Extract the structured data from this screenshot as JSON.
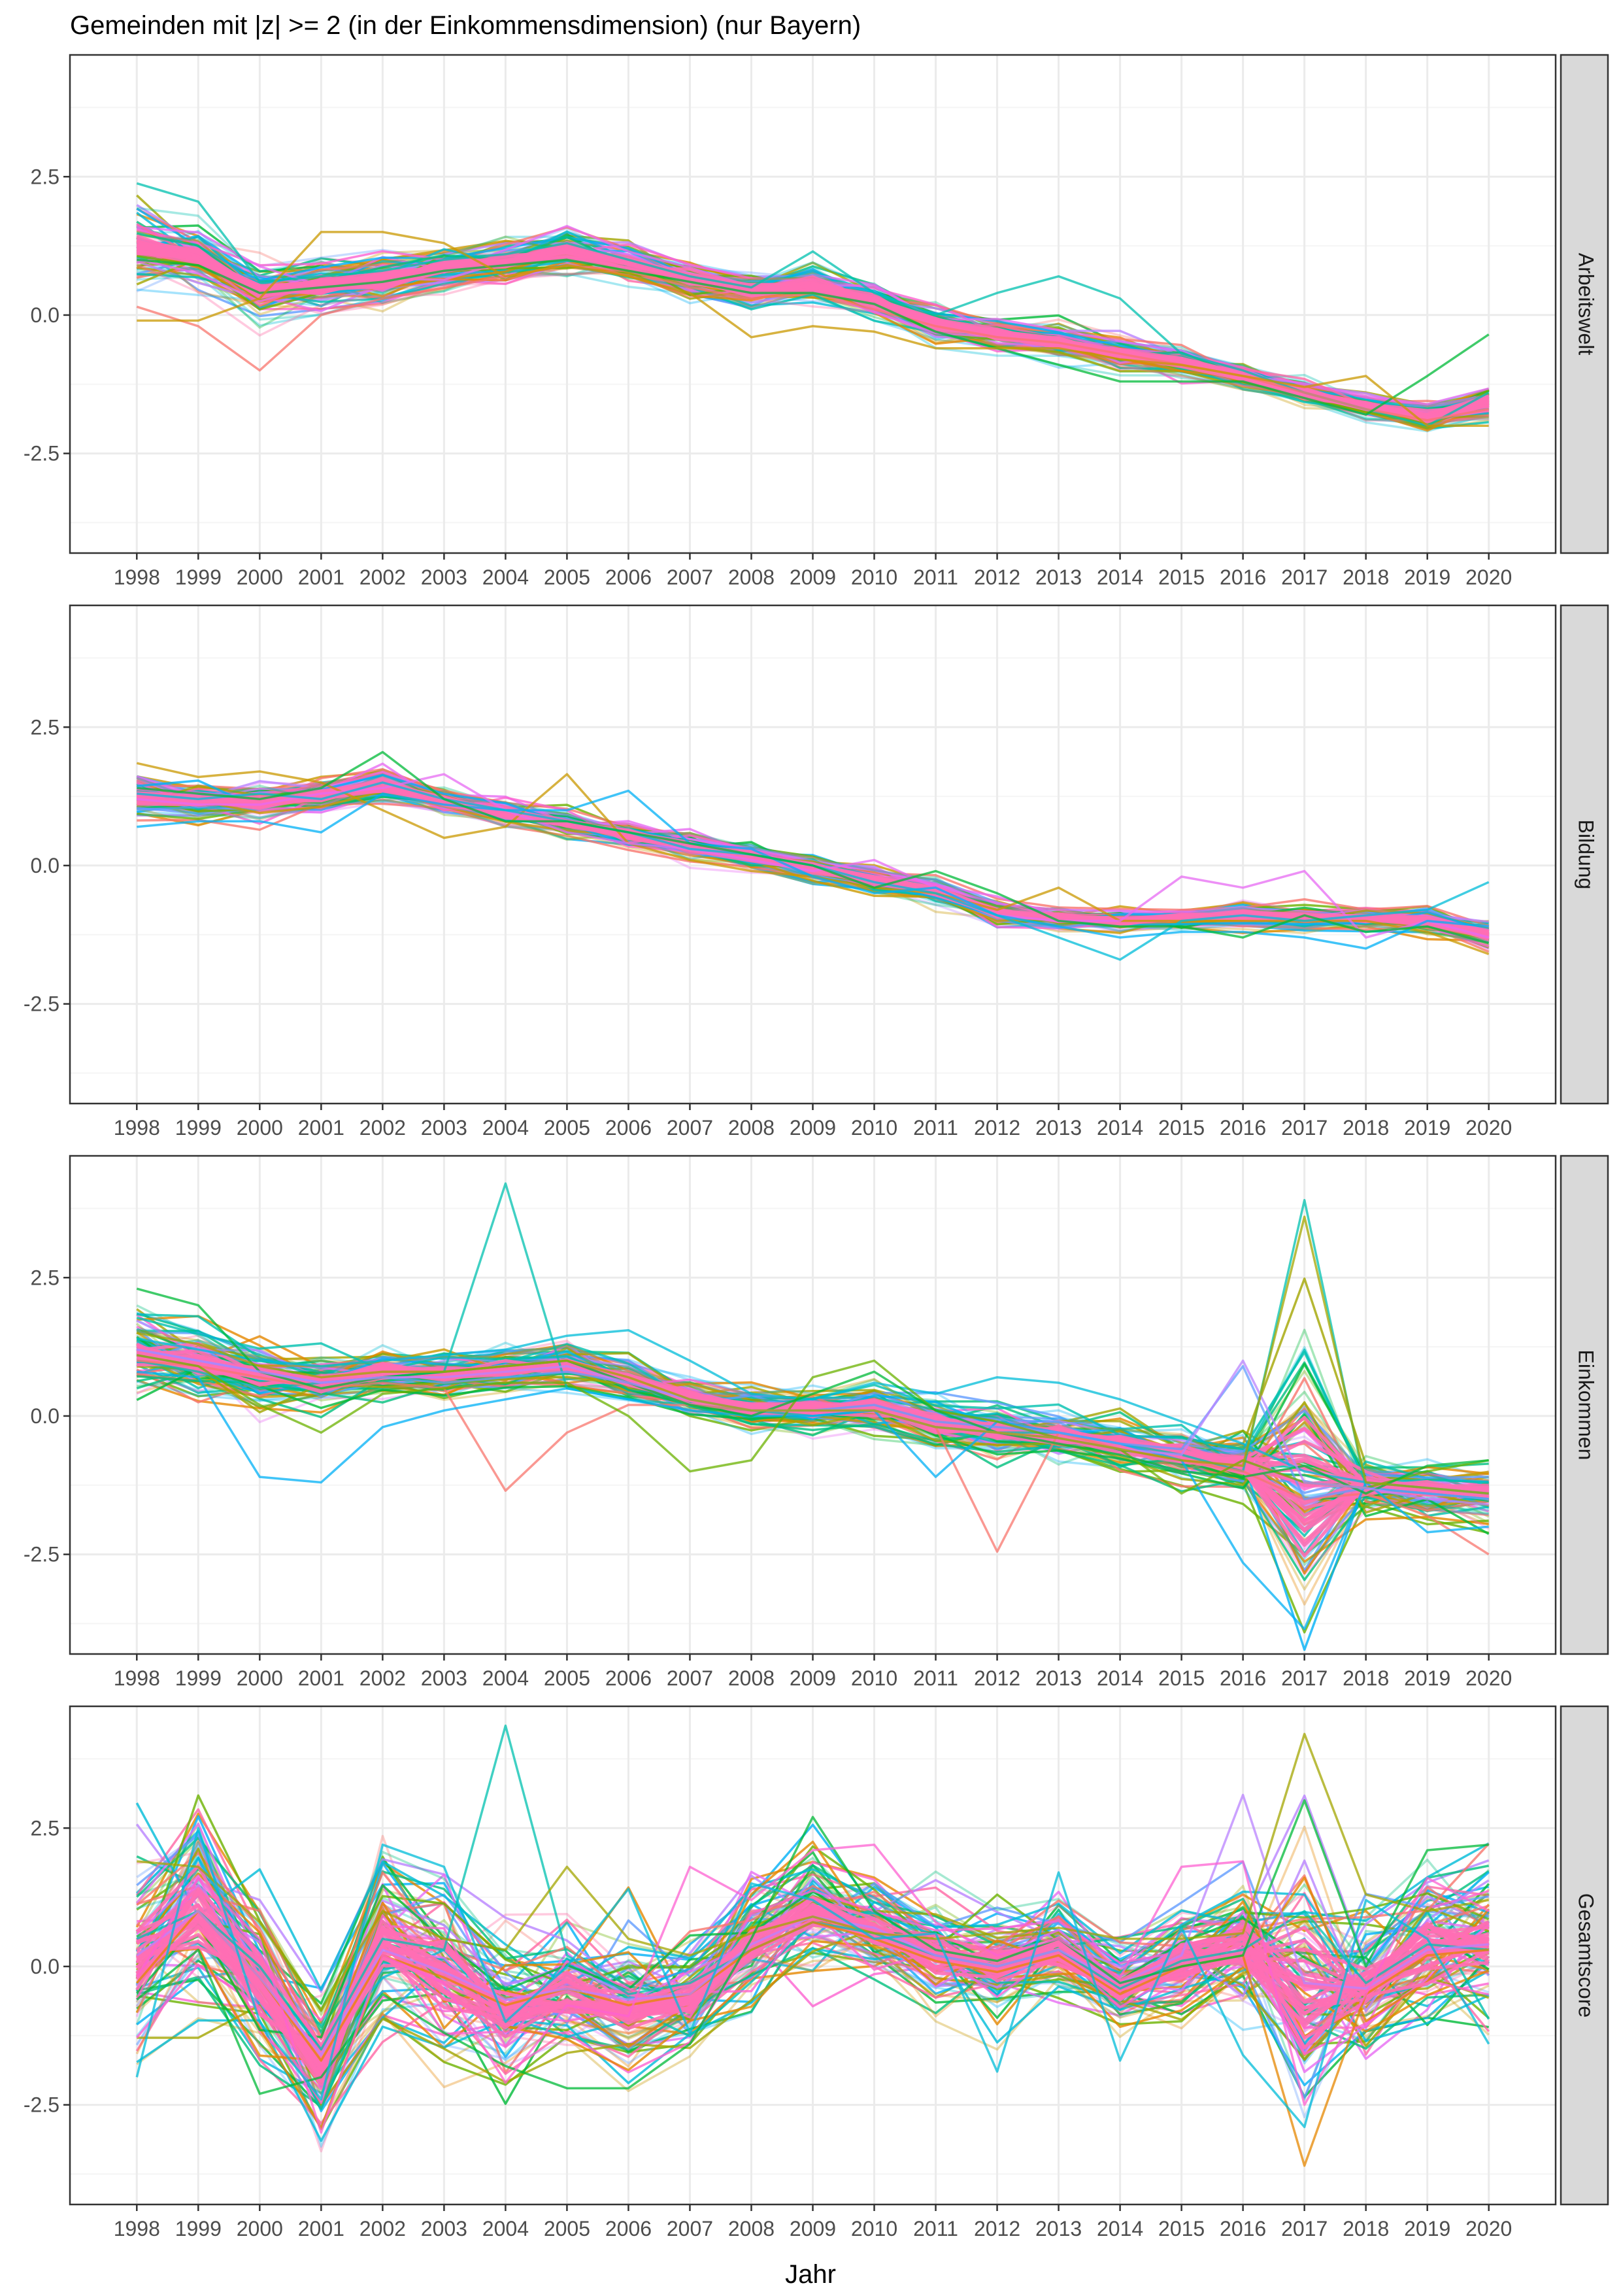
{
  "chart_data": {
    "type": "line",
    "title": "Gemeinden mit |z| >= 2 (in der Einkommensdimension) (nur Bayern)",
    "xlabel": "Jahr",
    "ylabel": "",
    "x": [
      "1998",
      "1999",
      "2000",
      "2001",
      "2002",
      "2003",
      "2004",
      "2005",
      "2006",
      "2007",
      "2008",
      "2009",
      "2010",
      "2011",
      "2012",
      "2013",
      "2014",
      "2015",
      "2016",
      "2017",
      "2018",
      "2019",
      "2020"
    ],
    "ylim": [
      -4.3,
      4.7
    ],
    "y_ticks": [
      -2.5,
      0.0,
      2.5
    ],
    "y_tick_labels": [
      "-2.5",
      "0.0",
      "2.5"
    ],
    "grid": true,
    "legend": "none",
    "palette": [
      "#F8766D",
      "#E58700",
      "#C99800",
      "#A3A500",
      "#6BB100",
      "#00BA38",
      "#00BF7D",
      "#00C0AF",
      "#00BCD8",
      "#00B0F6",
      "#619CFF",
      "#B983FF",
      "#E76BF3",
      "#FD61D1",
      "#FF67A4"
    ],
    "colors": {
      "panel_border": "#333333",
      "grid_major": "#ebebeb",
      "grid_minor": "#f5f5f5",
      "strip_fill": "#d9d9d9",
      "tick_text": "#4d4d4d",
      "main_line": "#FF6EB4"
    },
    "panels": [
      {
        "strip": "Arbeitswelt",
        "typical": [
          1.25,
          1.05,
          0.45,
          0.55,
          0.65,
          0.85,
          0.95,
          1.15,
          0.95,
          0.65,
          0.45,
          0.55,
          0.25,
          -0.15,
          -0.35,
          -0.5,
          -0.7,
          -0.85,
          -1.1,
          -1.4,
          -1.65,
          -1.85,
          -1.6
        ],
        "spread": [
          0.45,
          0.35,
          0.3,
          0.3,
          0.3,
          0.25,
          0.25,
          0.25,
          0.2,
          0.2,
          0.2,
          0.2,
          0.2,
          0.2,
          0.2,
          0.2,
          0.2,
          0.15,
          0.15,
          0.15,
          0.15,
          0.15,
          0.2
        ],
        "outliers": [
          {
            "color": "#00C0AF",
            "values": [
              2.38,
              2.05,
              0.6,
              0.7,
              0.8,
              1.0,
              1.1,
              1.3,
              1.0,
              0.7,
              0.5,
              1.15,
              0.4,
              0.0,
              0.4,
              0.7,
              0.3,
              -0.7,
              -1.0,
              -1.4,
              -1.7,
              -2.0,
              -1.4
            ]
          },
          {
            "color": "#F8766D",
            "values": [
              0.15,
              -0.2,
              -1.0,
              0.0,
              0.3,
              0.5,
              0.7,
              0.9,
              0.8,
              0.5,
              0.3,
              0.4,
              0.1,
              -0.2,
              -0.4,
              -0.5,
              -0.7,
              -0.9,
              -1.1,
              -1.4,
              -1.7,
              -1.9,
              -1.7
            ]
          },
          {
            "color": "#00BA38",
            "values": [
              1.0,
              0.9,
              0.4,
              0.5,
              0.6,
              0.8,
              0.9,
              1.0,
              0.8,
              0.6,
              0.4,
              0.4,
              0.2,
              -0.3,
              -0.6,
              -0.9,
              -1.2,
              -1.2,
              -1.2,
              -1.5,
              -1.8,
              -1.1,
              -0.35
            ]
          },
          {
            "color": "#C99800",
            "values": [
              -0.1,
              -0.1,
              0.3,
              1.5,
              1.5,
              1.3,
              0.7,
              0.9,
              0.7,
              0.4,
              -0.4,
              -0.2,
              -0.3,
              -0.6,
              -0.6,
              -0.6,
              -0.8,
              -0.9,
              -1.1,
              -1.3,
              -1.1,
              -2.0,
              -2.0
            ]
          }
        ]
      },
      {
        "strip": "Bildung",
        "typical": [
          1.25,
          1.15,
          1.15,
          1.25,
          1.45,
          1.15,
          0.95,
          0.75,
          0.55,
          0.35,
          0.15,
          -0.05,
          -0.25,
          -0.45,
          -0.85,
          -0.95,
          -1.0,
          -0.95,
          -0.9,
          -0.95,
          -0.95,
          -1.0,
          -1.25
        ],
        "spread": [
          0.25,
          0.2,
          0.2,
          0.2,
          0.2,
          0.15,
          0.15,
          0.15,
          0.15,
          0.15,
          0.15,
          0.15,
          0.15,
          0.15,
          0.15,
          0.12,
          0.12,
          0.12,
          0.12,
          0.12,
          0.12,
          0.15,
          0.15
        ],
        "outliers": [
          {
            "color": "#C99800",
            "values": [
              1.85,
              1.6,
              1.7,
              1.5,
              1.0,
              0.5,
              0.7,
              1.65,
              0.4,
              0.1,
              -0.1,
              -0.2,
              -0.4,
              -0.5,
              -0.8,
              -0.4,
              -1.0,
              -1.0,
              -1.0,
              -1.0,
              -1.0,
              -1.2,
              -1.6
            ]
          },
          {
            "color": "#E76BF3",
            "values": [
              1.2,
              1.1,
              1.1,
              1.3,
              1.4,
              1.65,
              1.0,
              0.6,
              0.4,
              0.3,
              0.1,
              -0.1,
              0.1,
              -0.4,
              -0.9,
              -1.0,
              -1.0,
              -0.2,
              -0.4,
              -0.1,
              -1.3,
              -1.0,
              -1.3
            ]
          },
          {
            "color": "#00B0F6",
            "values": [
              0.7,
              0.8,
              0.8,
              0.6,
              1.3,
              1.1,
              1.0,
              1.0,
              1.35,
              0.4,
              0.3,
              -0.2,
              -0.5,
              -0.4,
              -0.9,
              -1.1,
              -1.3,
              -1.2,
              -1.2,
              -1.3,
              -1.5,
              -1.0,
              -1.1
            ]
          },
          {
            "color": "#00BCD8",
            "values": [
              1.3,
              1.2,
              1.3,
              1.2,
              1.5,
              1.2,
              1.0,
              0.8,
              0.6,
              0.3,
              0.2,
              0.0,
              -0.3,
              -0.5,
              -0.9,
              -1.3,
              -1.7,
              -1.0,
              -0.9,
              -1.0,
              -0.9,
              -0.8,
              -0.3
            ]
          },
          {
            "color": "#00BA38",
            "values": [
              1.4,
              1.3,
              1.2,
              1.4,
              2.05,
              1.2,
              0.8,
              0.8,
              0.6,
              0.4,
              0.2,
              0.0,
              -0.4,
              -0.1,
              -0.5,
              -1.0,
              -1.1,
              -1.1,
              -1.3,
              -0.9,
              -1.2,
              -1.1,
              -1.4
            ]
          }
        ]
      },
      {
        "strip": "Einkommen",
        "typical": [
          1.15,
          0.95,
          0.75,
          0.6,
          0.8,
          0.75,
          0.85,
          0.95,
          0.65,
          0.35,
          0.15,
          0.1,
          0.15,
          -0.15,
          -0.25,
          -0.35,
          -0.5,
          -0.7,
          -0.9,
          -1.3,
          -1.25,
          -1.35,
          -1.4
        ],
        "spread": [
          0.45,
          0.4,
          0.35,
          0.3,
          0.25,
          0.25,
          0.25,
          0.25,
          0.25,
          0.25,
          0.25,
          0.25,
          0.3,
          0.3,
          0.3,
          0.3,
          0.3,
          0.3,
          0.35,
          2.8,
          0.3,
          0.3,
          0.35
        ],
        "outliers": [
          {
            "color": "#00C0AF",
            "values": [
              1.0,
              0.8,
              0.5,
              0.6,
              0.7,
              0.8,
              4.2,
              0.5,
              0.3,
              0.2,
              0.1,
              0.0,
              0.1,
              -0.2,
              -0.3,
              -0.3,
              -0.5,
              -0.7,
              -1.0,
              3.9,
              -1.3,
              -1.4,
              -1.5
            ]
          },
          {
            "color": "#F8766D",
            "values": [
              1.0,
              0.9,
              0.7,
              0.5,
              0.6,
              0.5,
              -1.35,
              -0.3,
              0.2,
              0.2,
              0.1,
              0.1,
              0.1,
              -0.2,
              -2.45,
              -0.3,
              -0.6,
              -0.8,
              -1.0,
              -1.5,
              -1.4,
              -1.8,
              -2.5
            ]
          },
          {
            "color": "#00B0F6",
            "values": [
              0.8,
              0.7,
              -1.1,
              -1.2,
              -0.2,
              0.1,
              0.3,
              0.5,
              0.3,
              0.1,
              0.0,
              0.0,
              0.1,
              -1.1,
              -0.1,
              -0.3,
              -0.5,
              -0.8,
              -2.65,
              -3.85,
              -1.2,
              -2.1,
              -2.0
            ]
          },
          {
            "color": "#619CFF",
            "values": [
              1.2,
              1.0,
              0.8,
              0.6,
              0.7,
              0.6,
              0.7,
              0.8,
              0.6,
              0.3,
              0.1,
              0.1,
              0.2,
              -0.1,
              -0.2,
              -0.3,
              -0.5,
              -0.6,
              0.9,
              -1.5,
              -1.3,
              -1.4,
              -1.5
            ]
          },
          {
            "color": "#00BCD8",
            "values": [
              1.4,
              1.2,
              1.0,
              0.9,
              1.0,
              1.1,
              1.2,
              1.45,
              1.55,
              1.0,
              0.4,
              0.3,
              0.6,
              0.4,
              0.7,
              0.6,
              0.3,
              -0.1,
              -0.5,
              -1.0,
              -1.2,
              -1.3,
              -1.4
            ]
          },
          {
            "color": "#6BB100",
            "values": [
              1.1,
              0.9,
              0.2,
              -0.3,
              0.4,
              0.5,
              0.6,
              0.6,
              0.0,
              -1.0,
              -0.8,
              0.7,
              1.0,
              0.1,
              -0.1,
              -0.4,
              -0.6,
              -1.4,
              -0.8,
              -1.2,
              -1.3,
              -1.0,
              -0.8
            ]
          },
          {
            "color": "#00BA38",
            "values": [
              2.3,
              2.0,
              0.8,
              0.5,
              0.7,
              0.8,
              0.9,
              1.0,
              0.6,
              0.2,
              0.0,
              0.4,
              0.8,
              0.1,
              -0.3,
              -0.5,
              -0.7,
              -1.0,
              -1.1,
              -0.9,
              -1.4,
              -0.9,
              -0.8
            ]
          },
          {
            "color": "#B983FF",
            "values": [
              1.2,
              1.0,
              0.8,
              0.6,
              0.7,
              0.7,
              0.8,
              0.9,
              0.6,
              0.3,
              0.1,
              0.1,
              0.1,
              -0.2,
              -0.3,
              -0.4,
              -0.6,
              -0.7,
              1.0,
              -1.2,
              -1.3,
              -1.5,
              -1.6
            ]
          },
          {
            "color": "#A3A500",
            "values": [
              1.5,
              1.3,
              0.9,
              0.7,
              0.8,
              0.8,
              0.9,
              1.0,
              0.7,
              0.3,
              0.1,
              0.1,
              0.1,
              -0.2,
              -0.3,
              -0.4,
              -0.6,
              -0.8,
              -0.9,
              3.6,
              -1.2,
              -1.3,
              -1.4
            ]
          }
        ]
      },
      {
        "strip": "Gesamtscore",
        "typical": [
          0.05,
          1.1,
          -0.3,
          -1.8,
          0.45,
          -0.1,
          -0.8,
          -0.5,
          -0.8,
          -0.6,
          0.4,
          1.0,
          0.7,
          0.2,
          0.0,
          0.3,
          -0.4,
          0.1,
          0.35,
          -0.2,
          -0.4,
          0.3,
          0.45
        ],
        "spread": [
          1.2,
          1.2,
          1.0,
          0.8,
          1.1,
          1.0,
          0.8,
          0.8,
          0.8,
          0.7,
          0.7,
          0.8,
          0.6,
          0.6,
          0.6,
          0.6,
          0.5,
          0.7,
          0.8,
          2.2,
          0.8,
          0.9,
          0.9
        ],
        "outliers": [
          {
            "color": "#00C0AF",
            "values": [
              0.5,
              1.0,
              0.0,
              -1.5,
              0.5,
              0.3,
              4.35,
              0.2,
              -0.5,
              -0.3,
              0.3,
              0.8,
              0.6,
              0.2,
              0.0,
              0.3,
              -0.4,
              0.1,
              0.3,
              1.0,
              -0.3,
              0.4,
              0.3
            ]
          },
          {
            "color": "#E58700",
            "values": [
              -0.3,
              1.0,
              -0.2,
              -1.7,
              0.2,
              -0.2,
              -0.7,
              -0.4,
              -0.7,
              -0.5,
              0.3,
              0.8,
              0.5,
              0.1,
              -0.1,
              0.2,
              -0.5,
              0.0,
              0.2,
              -3.6,
              -0.5,
              0.2,
              0.3
            ]
          },
          {
            "color": "#B983FF",
            "values": [
              0.2,
              1.0,
              -0.2,
              -1.6,
              0.3,
              -0.1,
              -0.6,
              -0.4,
              -0.6,
              -0.5,
              0.4,
              0.9,
              0.7,
              0.2,
              0.0,
              0.3,
              -0.3,
              0.2,
              3.1,
              -0.3,
              -0.4,
              0.3,
              0.4
            ]
          },
          {
            "color": "#A3A500",
            "values": [
              1.9,
              1.8,
              0.8,
              -0.8,
              1.0,
              0.5,
              0.3,
              1.8,
              0.5,
              0.2,
              0.6,
              0.9,
              0.6,
              0.5,
              0.6,
              0.7,
              0.5,
              0.5,
              0.6,
              4.2,
              1.3,
              1.0,
              1.2
            ]
          },
          {
            "color": "#00BA38",
            "values": [
              -0.6,
              0.3,
              -2.3,
              -2.0,
              -0.5,
              -1.2,
              -1.8,
              -2.2,
              -2.2,
              -1.4,
              0.5,
              2.7,
              1.0,
              0.3,
              0.1,
              0.5,
              -0.3,
              0.0,
              0.2,
              3.0,
              0.0,
              2.1,
              2.2
            ]
          },
          {
            "color": "#FD61D1",
            "values": [
              -0.2,
              1.6,
              0.5,
              -3.0,
              0.2,
              -0.3,
              -2.1,
              -0.7,
              -0.9,
              1.8,
              1.2,
              2.1,
              2.2,
              0.8,
              0.2,
              0.5,
              -0.2,
              1.8,
              1.9,
              -2.5,
              -0.5,
              1.6,
              1.0
            ]
          },
          {
            "color": "#00BCD8",
            "values": [
              -2.0,
              2.5,
              -1.0,
              -2.4,
              2.2,
              1.8,
              -1.0,
              0.0,
              1.4,
              -1.2,
              1.5,
              1.2,
              0.5,
              0.6,
              -1.9,
              1.7,
              -1.7,
              0.7,
              -1.6,
              -2.9,
              1.2,
              0.5,
              -1.4
            ]
          }
        ]
      }
    ]
  }
}
